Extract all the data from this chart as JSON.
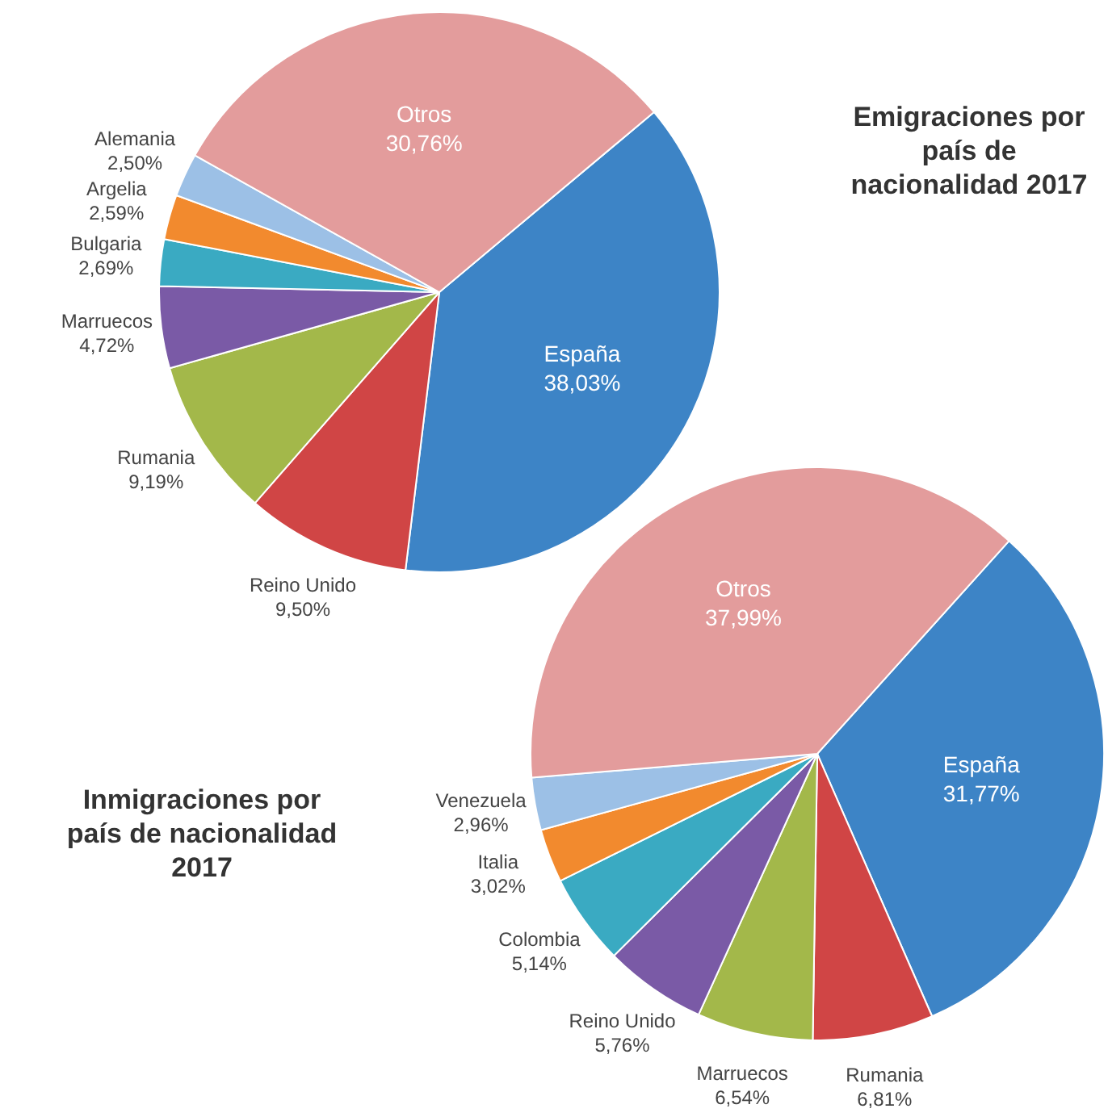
{
  "chart_data": [
    {
      "type": "pie",
      "title": "Emigraciones por país de nacionalidad 2017",
      "categories": [
        "España",
        "Reino Unido",
        "Rumania",
        "Marruecos",
        "Bulgaria",
        "Argelia",
        "Alemania",
        "Otros"
      ],
      "values": [
        38.03,
        9.5,
        9.19,
        4.72,
        2.69,
        2.59,
        2.5,
        30.76
      ],
      "value_labels": [
        "38,03%",
        "9,50%",
        "9,19%",
        "4,72%",
        "2,69%",
        "2,59%",
        "2,50%",
        "30,76%"
      ],
      "colors": [
        "#3d84c6",
        "#d04545",
        "#a3b84a",
        "#7a5aa6",
        "#3aaac2",
        "#f28a2e",
        "#9cc0e6",
        "#e39c9c"
      ],
      "legend": false
    },
    {
      "type": "pie",
      "title": "Inmigraciones por país de nacionalidad 2017",
      "categories": [
        "España",
        "Rumania",
        "Marruecos",
        "Reino Unido",
        "Colombia",
        "Italia",
        "Venezuela",
        "Otros"
      ],
      "values": [
        31.77,
        6.81,
        6.54,
        5.76,
        5.14,
        3.02,
        2.96,
        37.99
      ],
      "value_labels": [
        "31,77%",
        "6,81%",
        "6,54%",
        "5,76%",
        "5,14%",
        "3,02%",
        "2,96%",
        "37,99%"
      ],
      "colors": [
        "#3d84c6",
        "#d04545",
        "#a3b84a",
        "#7a5aa6",
        "#3aaac2",
        "#f28a2e",
        "#9cc0e6",
        "#e39c9c"
      ],
      "legend": false
    }
  ]
}
